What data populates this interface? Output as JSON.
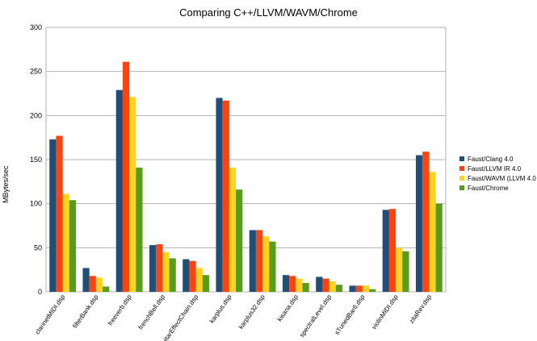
{
  "chart_data": {
    "type": "bar",
    "title": "Comparing C++/LLVM/WAVM/Chrome",
    "xlabel": "",
    "ylabel": "MBytes/sec",
    "ylim": [
      0,
      300
    ],
    "yticks": [
      0,
      50,
      100,
      150,
      200,
      250,
      300
    ],
    "grid": true,
    "legend_position": "right",
    "categories": [
      "clarinetMIDI.dsp",
      "filterBank.dsp",
      "freeverb.dsp",
      "frenchBell.dsp",
      "guitarEffectChain.dsp",
      "karplus.dsp",
      "karplus32.dsp",
      "kisana.dsp",
      "spectralLevel.dsp",
      "sTunedBar6.dsp",
      "violinMIDI.dsp",
      "zitaRev.dsp"
    ],
    "series": [
      {
        "name": "Faust/Clang 4.0",
        "color": "#1f4e79",
        "values": [
          173,
          27,
          229,
          53,
          37,
          220,
          70,
          19,
          17,
          7,
          93,
          155
        ]
      },
      {
        "name": "Faust/LLVM IR 4.0",
        "color": "#ff420e",
        "values": [
          177,
          18,
          261,
          54,
          35,
          217,
          70,
          18,
          15,
          7,
          94,
          159
        ]
      },
      {
        "name": "Faust/WAVM (LLVM 4.0",
        "color": "#ffd320",
        "values": [
          111,
          16,
          221,
          45,
          27,
          141,
          63,
          15,
          12,
          7,
          50,
          136
        ]
      },
      {
        "name": "Faust/Chrome",
        "color": "#579d1c",
        "values": [
          104,
          6,
          141,
          38,
          19,
          116,
          57,
          10,
          8,
          3,
          46,
          100
        ]
      }
    ]
  }
}
